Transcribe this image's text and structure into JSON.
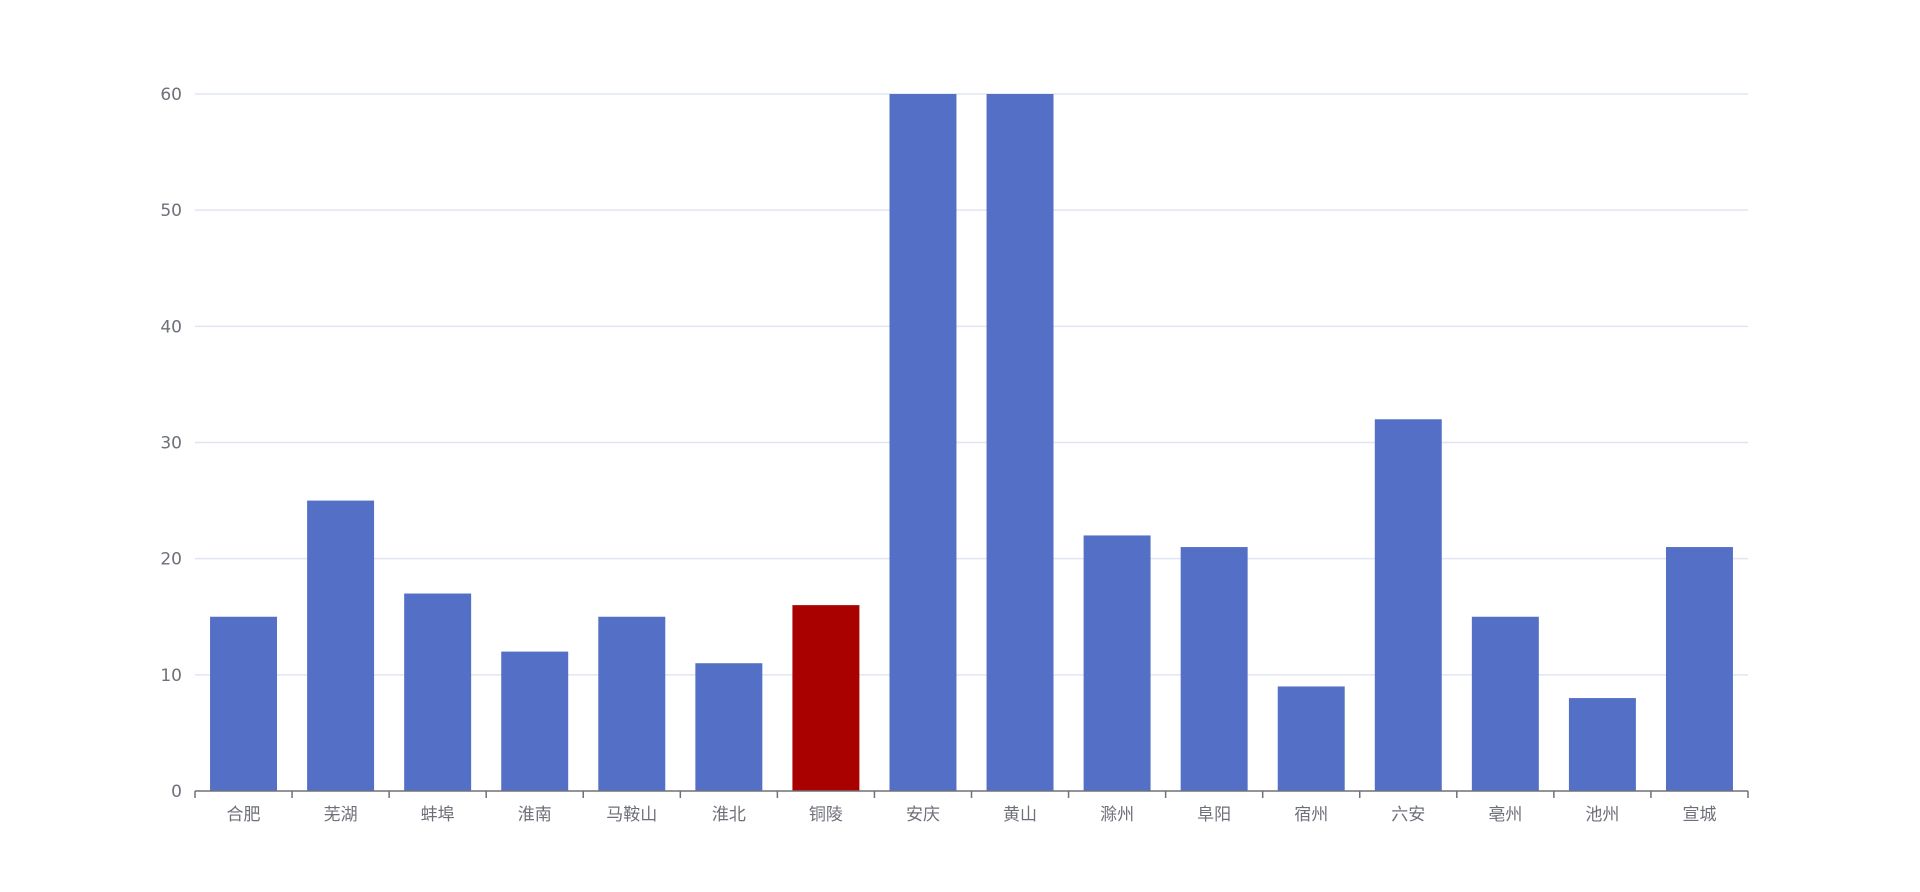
{
  "chart_data": {
    "type": "bar",
    "title": "",
    "xlabel": "",
    "ylabel": "",
    "categories": [
      "合肥",
      "芜湖",
      "蚌埠",
      "淮南",
      "马鞍山",
      "淮北",
      "铜陵",
      "安庆",
      "黄山",
      "滁州",
      "阜阳",
      "宿州",
      "六安",
      "亳州",
      "池州",
      "宣城"
    ],
    "values": [
      15,
      25,
      17,
      12,
      15,
      11,
      16,
      60,
      60,
      22,
      21,
      9,
      32,
      15,
      8,
      21
    ],
    "highlight_index": 6,
    "ylim": [
      0,
      60
    ],
    "yticks": [
      0,
      10,
      20,
      30,
      40,
      50,
      60
    ],
    "grid": true,
    "legend": "none",
    "colors": {
      "bar": "#5470c6",
      "highlight": "#a90000",
      "grid": "#e0e6f1",
      "axis": "#6e7079",
      "label": "#6e7079"
    }
  }
}
